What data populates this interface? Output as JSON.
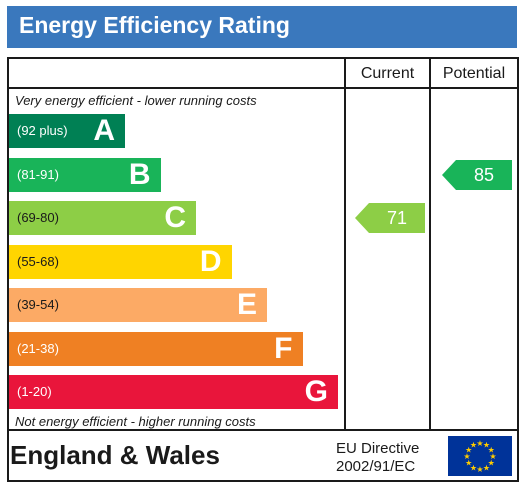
{
  "title": "Energy Efficiency Rating",
  "columns": {
    "current": "Current",
    "potential": "Potential"
  },
  "top_caption": "Very energy efficient - lower running costs",
  "bottom_caption": "Not energy efficient - higher running costs",
  "footer": {
    "region": "England & Wales",
    "directive_line1": "EU Directive",
    "directive_line2": "2002/91/EC"
  },
  "colors": {
    "header": "#3a78bd",
    "eu_flag": "#003399",
    "eu_stars": "#ffcc00"
  },
  "chart_data": {
    "type": "bar",
    "bands": [
      {
        "range": "(92 plus)",
        "letter": "A",
        "color": "#008054",
        "dark_text": false
      },
      {
        "range": "(81-91)",
        "letter": "B",
        "color": "#19b459",
        "dark_text": false
      },
      {
        "range": "(69-80)",
        "letter": "C",
        "color": "#8dce46",
        "dark_text": true
      },
      {
        "range": "(55-68)",
        "letter": "D",
        "color": "#ffd500",
        "dark_text": true
      },
      {
        "range": "(39-54)",
        "letter": "E",
        "color": "#fcaa65",
        "dark_text": true
      },
      {
        "range": "(21-38)",
        "letter": "F",
        "color": "#ef8023",
        "dark_text": false
      },
      {
        "range": "(1-20)",
        "letter": "G",
        "color": "#e9153b",
        "dark_text": false
      }
    ],
    "current": {
      "value": 71,
      "band": "C",
      "color": "#8dce46"
    },
    "potential": {
      "value": 85,
      "band": "B",
      "color": "#19b459"
    }
  }
}
